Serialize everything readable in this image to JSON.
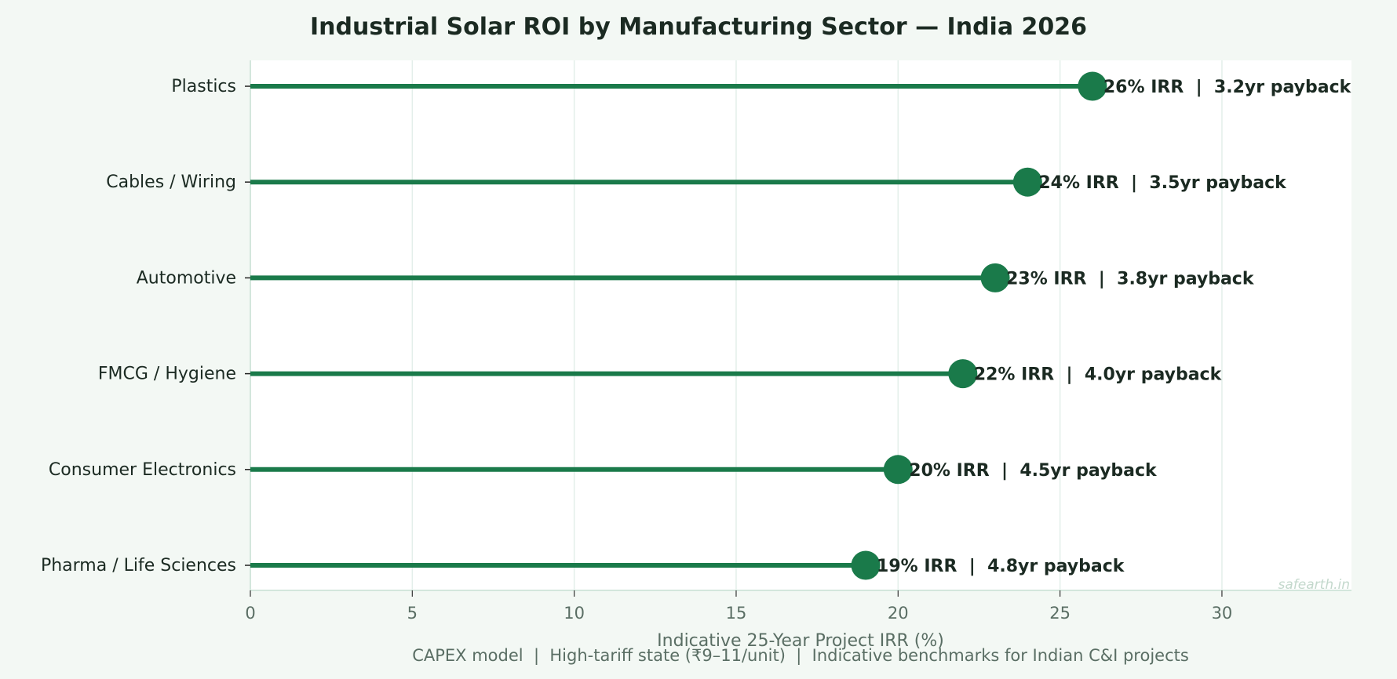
{
  "chart_data": {
    "type": "lollipop",
    "title": "Industrial Solar ROI by Manufacturing Sector — India 2026",
    "xlabel": "Indicative 25-Year Project IRR (%)",
    "subtitle": "CAPEX model  |  High-tariff state (₹9–11/unit)  |  Indicative benchmarks for Indian C&I projects",
    "watermark": "safearth.in",
    "xlim": [
      0,
      34
    ],
    "xticks": [
      0,
      5,
      10,
      15,
      20,
      25,
      30
    ],
    "grid": "vertical",
    "categories": [
      "Plastics",
      "Cables / Wiring",
      "Automotive",
      "FMCG / Hygiene",
      "Consumer Electronics",
      "Pharma / Life Sciences"
    ],
    "values": [
      26,
      24,
      23,
      22,
      20,
      19
    ],
    "payback_years": [
      3.2,
      3.5,
      3.8,
      4.0,
      4.5,
      4.8
    ],
    "labels": [
      "26% IRR  |  3.2yr payback",
      "24% IRR  |  3.5yr payback",
      "23% IRR  |  3.8yr payback",
      "22% IRR  |  4.0yr payback",
      "20% IRR  |  4.5yr payback",
      "19% IRR  |  4.8yr payback"
    ],
    "colors": {
      "marker": "#1a7a4a",
      "background": "#f3f8f4",
      "plot": "#ffffff",
      "grid": "#e3efea",
      "text": "#1b2a22",
      "muted": "#5a6e64"
    }
  }
}
